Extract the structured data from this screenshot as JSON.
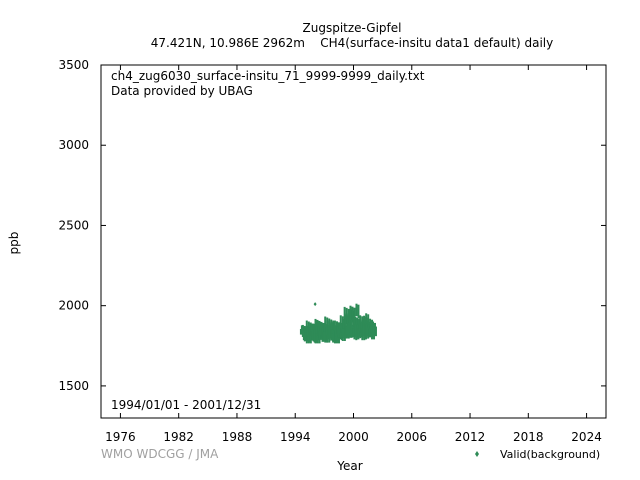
{
  "chart_data": {
    "type": "scatter",
    "title": "Zugspitze-Gipfel",
    "subtitle": "47.421N, 10.986E 2962m    CH4(surface-insitu data1 default) daily",
    "file_label": "ch4_zug6030_surface-insitu_71_9999-9999_daily.txt",
    "provider_label": "Data provided by UBAG",
    "date_range_label": "1994/01/01 - 2001/12/31",
    "credit": "WMO WDCGG / JMA",
    "xlabel": "Year",
    "ylabel": "ppb",
    "xlim": [
      1974.0,
      2026.0
    ],
    "ylim": [
      1300,
      3500
    ],
    "xticks": [
      1976,
      1982,
      1988,
      1994,
      2000,
      2006,
      2012,
      2018,
      2024
    ],
    "yticks": [
      1500,
      2000,
      2500,
      3000,
      3500
    ],
    "grid": false,
    "legend_position": "bottom-right",
    "point_color": "#2e8b57",
    "series": [
      {
        "name": "Valid(background)",
        "x": [
          1995.0,
          1995.1,
          1995.2,
          1995.3,
          1995.4,
          1995.5,
          1995.6,
          1995.7,
          1995.8,
          1995.9,
          1996.0,
          1996.05,
          1996.1,
          1996.2,
          1996.3,
          1996.4,
          1996.5,
          1996.6,
          1996.7,
          1996.8,
          1996.9,
          1997.0,
          1997.1,
          1997.2,
          1997.3,
          1997.4,
          1997.5,
          1997.6,
          1997.7,
          1997.8,
          1997.9,
          1998.0,
          1998.1,
          1998.2,
          1998.3,
          1998.4,
          1998.5,
          1998.6,
          1998.7,
          1998.8,
          1998.9,
          1999.0,
          1999.1,
          1999.2,
          1999.3,
          1999.4,
          1999.5,
          1999.6,
          1999.7,
          1999.8,
          1999.9,
          2000.0,
          2000.1,
          2000.2,
          2000.3,
          2000.4,
          2000.5,
          2000.6,
          2000.7,
          2000.8,
          2000.9,
          2001.0,
          2001.1,
          2001.2,
          2001.3,
          2001.4,
          2001.5,
          2001.6,
          2001.7,
          2001.8,
          2001.9
        ],
        "y": [
          1800,
          1830,
          1845,
          1820,
          1790,
          1810,
          1860,
          1840,
          1800,
          1825,
          1815,
          2010,
          1850,
          1830,
          1795,
          1805,
          1870,
          1845,
          1810,
          1835,
          1820,
          1825,
          1860,
          1840,
          1800,
          1815,
          1880,
          1850,
          1805,
          1830,
          1825,
          1830,
          1855,
          1835,
          1790,
          1820,
          1860,
          1840,
          1810,
          1835,
          1830,
          1835,
          1900,
          1870,
          1820,
          1830,
          1940,
          1910,
          1850,
          1840,
          1830,
          1840,
          1960,
          1890,
          1820,
          1835,
          1880,
          1850,
          1815,
          1845,
          1835,
          1845,
          1900,
          1870,
          1825,
          1840,
          1890,
          1860,
          1820,
          1850,
          1840
        ],
        "spread_low": [
          30,
          35,
          40,
          35,
          25,
          30,
          40,
          35,
          30,
          35,
          30,
          0,
          40,
          35,
          30,
          30,
          45,
          40,
          35,
          35,
          30,
          35,
          45,
          40,
          30,
          30,
          40,
          40,
          35,
          35,
          30,
          35,
          40,
          35,
          25,
          35,
          40,
          35,
          30,
          35,
          30,
          30,
          40,
          35,
          25,
          30,
          45,
          40,
          30,
          35,
          30,
          30,
          50,
          40,
          30,
          30,
          40,
          35,
          30,
          35,
          30,
          30,
          40,
          35,
          30,
          30,
          40,
          35,
          30,
          35,
          30
        ],
        "spread_high": [
          60,
          70,
          75,
          65,
          50,
          60,
          75,
          70,
          60,
          65,
          60,
          0,
          75,
          65,
          55,
          60,
          80,
          70,
          65,
          65,
          60,
          65,
          80,
          75,
          60,
          60,
          80,
          75,
          60,
          65,
          60,
          65,
          75,
          65,
          55,
          65,
          75,
          70,
          60,
          65,
          60,
          60,
          80,
          70,
          55,
          60,
          85,
          75,
          60,
          65,
          60,
          60,
          90,
          75,
          60,
          60,
          75,
          70,
          60,
          65,
          60,
          60,
          80,
          70,
          60,
          60,
          75,
          70,
          60,
          65,
          60
        ]
      }
    ]
  }
}
